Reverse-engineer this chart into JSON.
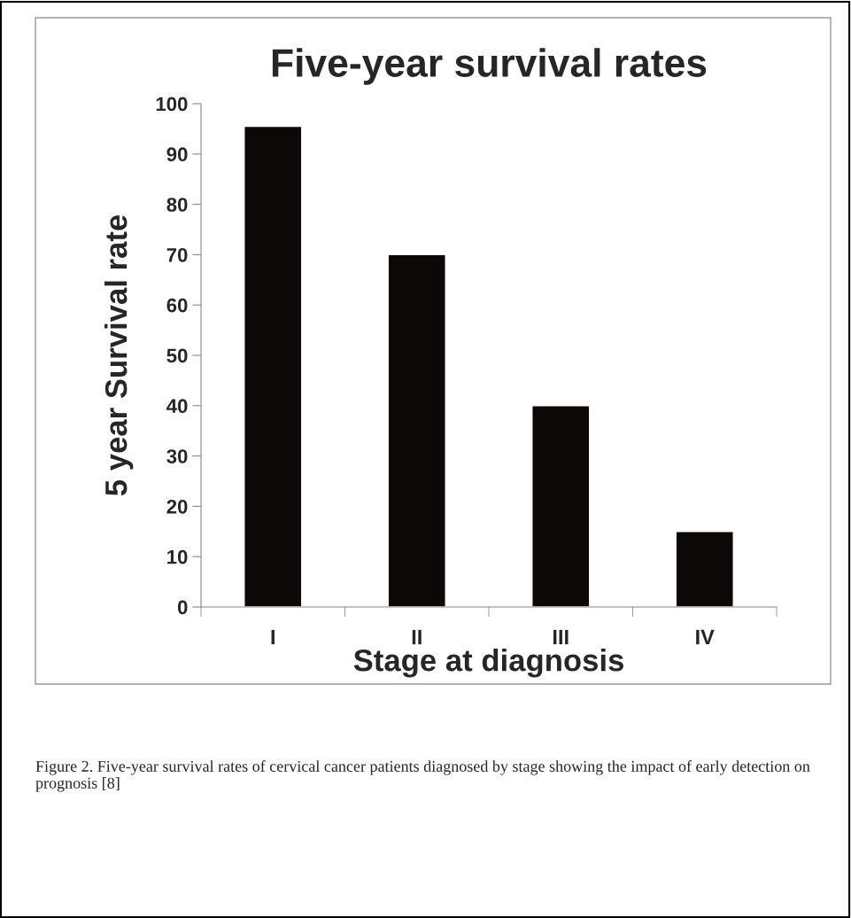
{
  "chart_data": {
    "type": "bar",
    "title": "Five-year survival rates",
    "xlabel": "Stage at diagnosis",
    "ylabel": "5 year Survival rate",
    "categories": [
      "I",
      "II",
      "III",
      "IV"
    ],
    "values": [
      95.5,
      70,
      40,
      15
    ],
    "color": "#0d0808",
    "ylim": [
      0,
      100
    ],
    "yticks": [
      0,
      10,
      20,
      30,
      40,
      50,
      60,
      70,
      80,
      90,
      100
    ],
    "grid": false,
    "legend": false,
    "annotations": [
      "Figure 2. Five-year survival rates of cervical cancer patients diagnosed by stage showing the impact of early detection on prognosis [8]"
    ]
  }
}
